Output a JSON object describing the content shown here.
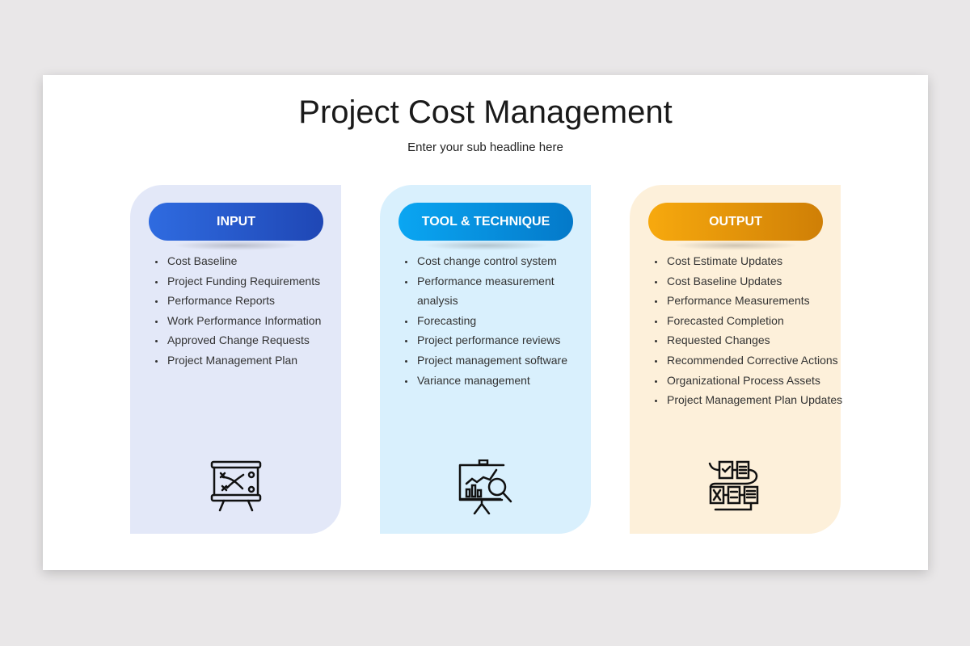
{
  "title": "Project Cost Management",
  "subtitle": "Enter your sub headline here",
  "columns": [
    {
      "label": "INPUT",
      "icon": "strategy-board-icon",
      "colors": {
        "bg": "#e3e8f8",
        "pill_from": "#2f6be0",
        "pill_to": "#1f47b5"
      },
      "items": [
        "Cost Baseline",
        "Project Funding Requirements",
        "Performance Reports",
        "Work Performance Information",
        "Approved Change Requests",
        "Project Management Plan"
      ]
    },
    {
      "label": "TOOL & TECHNIQUE",
      "icon": "presentation-analysis-icon",
      "colors": {
        "bg": "#d9f0fd",
        "pill_from": "#0aa6f2",
        "pill_to": "#0479c9"
      },
      "items": [
        "Cost change control system",
        "Performance measurement analysis",
        "Forecasting",
        "Project performance reviews",
        "Project management software",
        "Variance management"
      ]
    },
    {
      "label": "OUTPUT",
      "icon": "workflow-documents-icon",
      "colors": {
        "bg": "#fdf0da",
        "pill_from": "#f7a90e",
        "pill_to": "#cf7f06"
      },
      "items": [
        "Cost Estimate Updates",
        "Cost Baseline Updates",
        "Performance Measurements",
        "Forecasted Completion",
        "Requested Changes",
        "Recommended Corrective Actions",
        "Organizational Process Assets",
        "Project Management Plan Updates"
      ]
    }
  ]
}
